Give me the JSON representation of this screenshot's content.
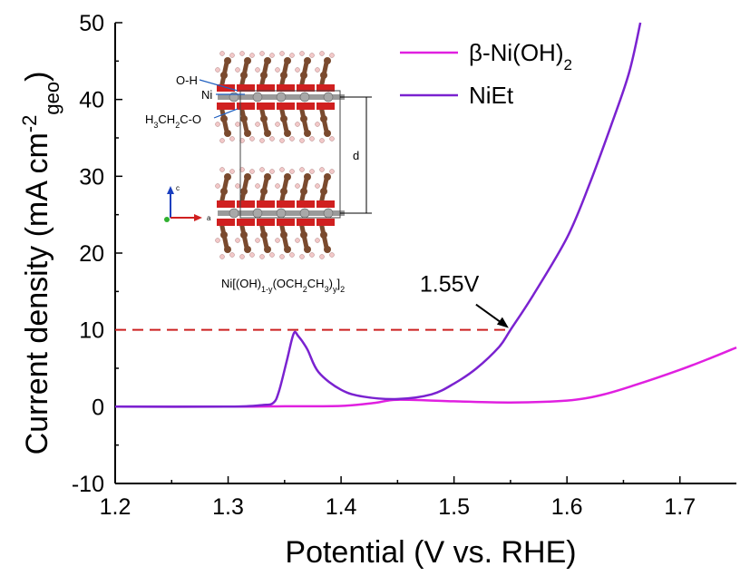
{
  "chart_data": {
    "type": "line",
    "xlabel": "Potential (V vs. RHE)",
    "ylabel_main": "Current density (mA cm",
    "ylabel_sup": "-2",
    "ylabel_sub": "geo",
    "ylabel_close": ")",
    "xlim": [
      1.2,
      1.75
    ],
    "ylim": [
      -10,
      50
    ],
    "xticks": [
      "1.2",
      "1.3",
      "1.4",
      "1.5",
      "1.6",
      "1.7"
    ],
    "yticks": [
      "-10",
      "0",
      "10",
      "20",
      "30",
      "40",
      "50"
    ],
    "legend_position": "top-right",
    "series": [
      {
        "name": "β-Ni(OH)",
        "name_sub": "2",
        "color": "#e020e0",
        "points": [
          [
            1.2,
            0.0
          ],
          [
            1.3,
            0.0
          ],
          [
            1.35,
            0.05
          ],
          [
            1.4,
            0.1
          ],
          [
            1.43,
            0.5
          ],
          [
            1.45,
            0.9
          ],
          [
            1.5,
            0.7
          ],
          [
            1.55,
            0.55
          ],
          [
            1.6,
            0.8
          ],
          [
            1.63,
            1.5
          ],
          [
            1.66,
            2.8
          ],
          [
            1.7,
            4.8
          ],
          [
            1.73,
            6.5
          ],
          [
            1.75,
            7.7
          ]
        ]
      },
      {
        "name": "NiEt",
        "name_sub": "",
        "color": "#7a22d0",
        "points": [
          [
            1.2,
            0.0
          ],
          [
            1.3,
            0.0
          ],
          [
            1.33,
            0.2
          ],
          [
            1.34,
            0.5
          ],
          [
            1.345,
            2.0
          ],
          [
            1.352,
            6.0
          ],
          [
            1.358,
            9.5
          ],
          [
            1.362,
            9.2
          ],
          [
            1.37,
            7.5
          ],
          [
            1.38,
            4.5
          ],
          [
            1.4,
            2.2
          ],
          [
            1.42,
            1.3
          ],
          [
            1.45,
            1.0
          ],
          [
            1.48,
            1.6
          ],
          [
            1.5,
            3.0
          ],
          [
            1.52,
            5.0
          ],
          [
            1.54,
            7.8
          ],
          [
            1.55,
            10.0
          ],
          [
            1.57,
            14.5
          ],
          [
            1.6,
            22.0
          ],
          [
            1.62,
            29.0
          ],
          [
            1.64,
            37.0
          ],
          [
            1.655,
            43.5
          ],
          [
            1.665,
            50.0
          ]
        ]
      }
    ],
    "annotation": {
      "label": "1.55V",
      "x": 1.55,
      "y": 10,
      "dashed_from_x": 1.2,
      "dashed_color": "#cc2020"
    },
    "inset": {
      "labels": {
        "oh": "O-H",
        "ni": "Ni",
        "ethoxy": "H3CH2C-O",
        "d": "d",
        "axis_c": "c",
        "axis_a": "a",
        "formula": "Ni[(OH)1-y(OCH2CH3)y]2"
      },
      "colors": {
        "carbon": "#7a4a2e",
        "oxygen": "#d02020",
        "hydrogen": "#f2c8c8",
        "nickel": "#a8a8a8"
      }
    }
  }
}
